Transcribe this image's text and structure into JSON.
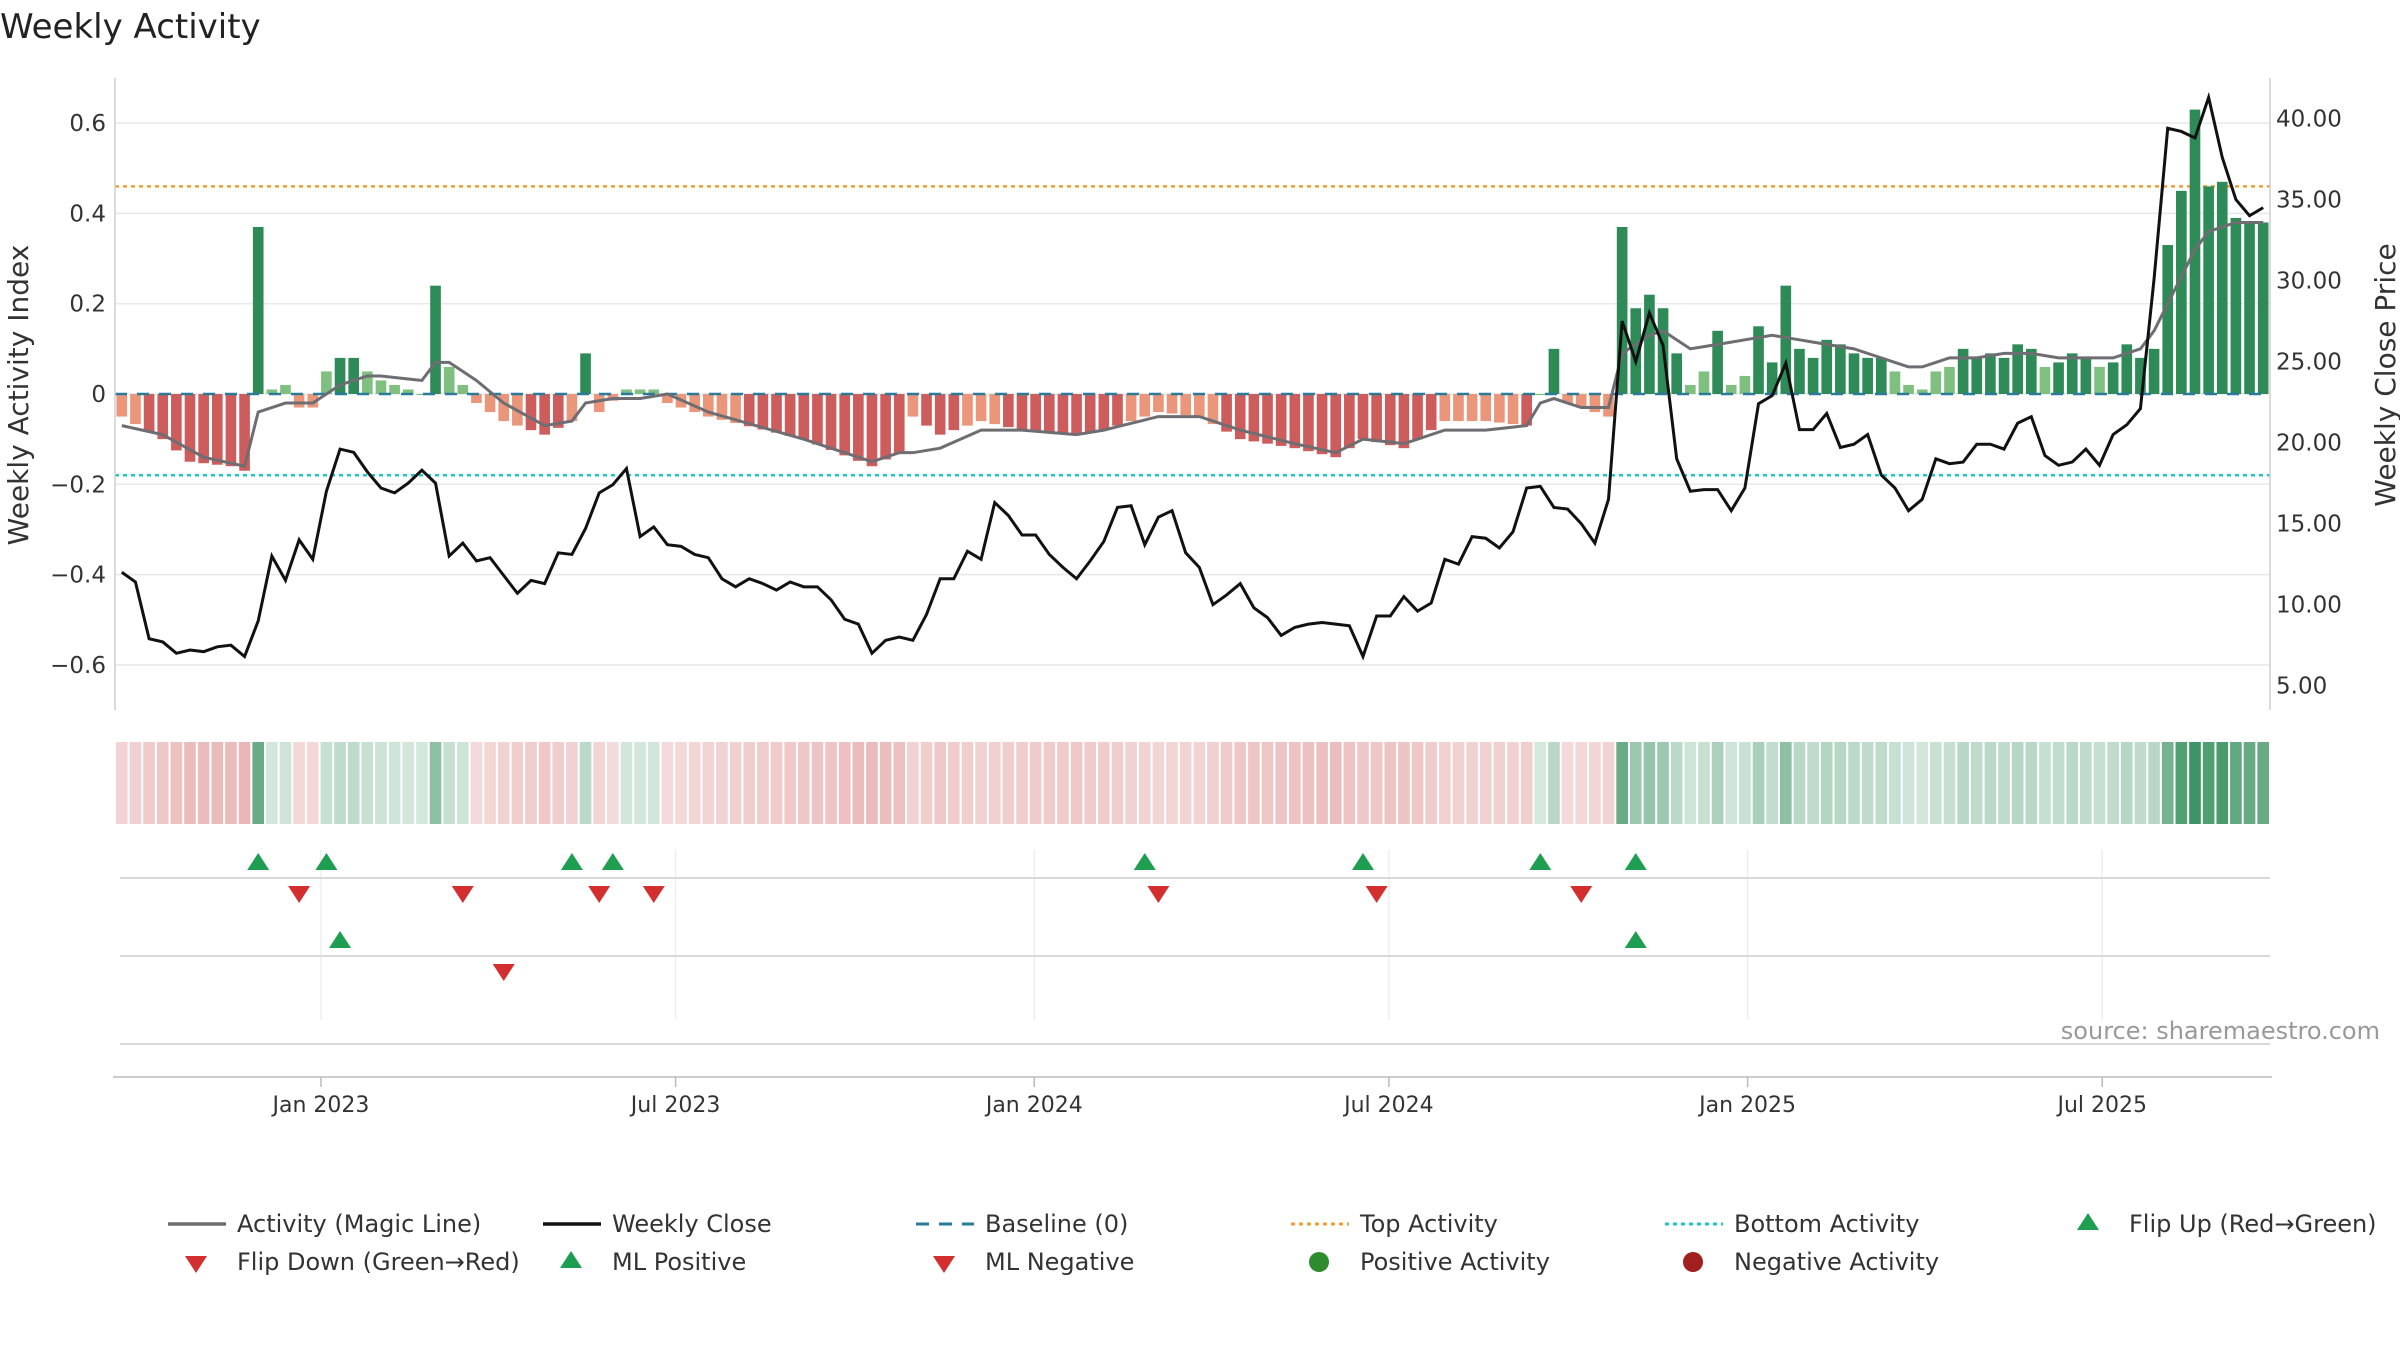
{
  "page": {
    "title": "Weekly Activity",
    "source": "source: sharemaestro.com"
  },
  "colors": {
    "magic": "#6e6e72",
    "close": "#111111",
    "baseline": "#2a7a9a",
    "top": "#f0a030",
    "bottom": "#20c8c8",
    "pos_dark": "#2e8b57",
    "pos_light": "#7fbf7f",
    "neg_dark": "#cd5c5c",
    "neg_light": "#e9967a",
    "flip_up": "#1e9e50",
    "flip_down": "#d32f2f",
    "heat_pos": "#2e8b57",
    "heat_neg": "#cd5c5c",
    "grid": "#e8e8e8"
  },
  "chart_data": {
    "type": "bar",
    "title": "Weekly Activity",
    "ylabel": "Weekly Activity Index",
    "y2label": "Weekly Close Price",
    "ylim": [
      -0.7,
      0.7
    ],
    "y2lim": [
      3.5,
      42.5
    ],
    "yticks": [
      -0.6,
      -0.4,
      -0.2,
      0,
      0.2,
      0.4,
      0.6
    ],
    "ytick_labels": [
      "−0.6",
      "−0.4",
      "−0.2",
      "0",
      "0.2",
      "0.4",
      "0.6"
    ],
    "y2ticks": [
      5,
      10,
      15,
      20,
      25,
      30,
      35,
      40
    ],
    "y2tick_labels": [
      "5.00",
      "10.00",
      "15.00",
      "20.00",
      "25.00",
      "30.00",
      "35.00",
      "40.00"
    ],
    "x_weeks": 158,
    "xticks": [
      {
        "week": 14.6,
        "label": "Jan 2023"
      },
      {
        "week": 40.6,
        "label": "Jul 2023"
      },
      {
        "week": 66.9,
        "label": "Jan 2024"
      },
      {
        "week": 92.9,
        "label": "Jul 2024"
      },
      {
        "week": 119.2,
        "label": "Jan 2025"
      },
      {
        "week": 145.2,
        "label": "Jul 2025"
      }
    ],
    "top_activity": 0.46,
    "bottom_activity": -0.18,
    "baseline": 0,
    "activity_anchors": [
      [
        0,
        -0.05
      ],
      [
        3,
        -0.1
      ],
      [
        5,
        -0.15
      ],
      [
        8,
        -0.16
      ],
      [
        9,
        -0.17
      ],
      [
        10,
        0.37
      ],
      [
        11,
        0.01
      ],
      [
        12,
        0.02
      ],
      [
        13,
        -0.03
      ],
      [
        14,
        -0.03
      ],
      [
        15,
        0.05
      ],
      [
        16,
        0.08
      ],
      [
        17,
        0.08
      ],
      [
        18,
        0.05
      ],
      [
        19,
        0.03
      ],
      [
        22,
        0.0
      ],
      [
        23,
        0.24
      ],
      [
        24,
        0.06
      ],
      [
        26,
        -0.02
      ],
      [
        28,
        -0.06
      ],
      [
        31,
        -0.09
      ],
      [
        33,
        -0.06
      ],
      [
        34,
        0.09
      ],
      [
        35,
        -0.04
      ],
      [
        37,
        0.01
      ],
      [
        39,
        0.01
      ],
      [
        40,
        -0.02
      ],
      [
        43,
        -0.05
      ],
      [
        50,
        -0.1
      ],
      [
        55,
        -0.16
      ],
      [
        57,
        -0.13
      ],
      [
        58,
        -0.05
      ],
      [
        60,
        -0.09
      ],
      [
        63,
        -0.06
      ],
      [
        66,
        -0.08
      ],
      [
        70,
        -0.09
      ],
      [
        72,
        -0.08
      ],
      [
        76,
        -0.04
      ],
      [
        79,
        -0.05
      ],
      [
        82,
        -0.1
      ],
      [
        86,
        -0.12
      ],
      [
        89,
        -0.14
      ],
      [
        91,
        -0.1
      ],
      [
        94,
        -0.12
      ],
      [
        97,
        -0.06
      ],
      [
        100,
        -0.06
      ],
      [
        103,
        -0.07
      ],
      [
        104,
        0.0
      ],
      [
        105,
        0.1
      ],
      [
        106,
        -0.02
      ],
      [
        109,
        -0.05
      ],
      [
        110,
        0.37
      ],
      [
        111,
        0.19
      ],
      [
        112,
        0.22
      ],
      [
        113,
        0.19
      ],
      [
        114,
        0.09
      ],
      [
        115,
        0.02
      ],
      [
        116,
        0.05
      ],
      [
        117,
        0.14
      ],
      [
        118,
        0.02
      ],
      [
        119,
        0.04
      ],
      [
        120,
        0.15
      ],
      [
        121,
        0.07
      ],
      [
        122,
        0.24
      ],
      [
        123,
        0.1
      ],
      [
        124,
        0.08
      ],
      [
        125,
        0.12
      ],
      [
        126,
        0.11
      ],
      [
        127,
        0.09
      ],
      [
        128,
        0.08
      ],
      [
        129,
        0.08
      ],
      [
        130,
        0.05
      ],
      [
        131,
        0.02
      ],
      [
        132,
        0.01
      ],
      [
        133,
        0.05
      ],
      [
        134,
        0.06
      ],
      [
        135,
        0.1
      ],
      [
        136,
        0.08
      ],
      [
        137,
        0.09
      ],
      [
        138,
        0.08
      ],
      [
        139,
        0.11
      ],
      [
        140,
        0.1
      ],
      [
        141,
        0.06
      ],
      [
        142,
        0.07
      ],
      [
        143,
        0.09
      ],
      [
        144,
        0.08
      ],
      [
        145,
        0.06
      ],
      [
        146,
        0.07
      ],
      [
        147,
        0.11
      ],
      [
        148,
        0.08
      ],
      [
        149,
        0.1
      ],
      [
        150,
        0.33
      ],
      [
        151,
        0.45
      ],
      [
        152,
        0.63
      ],
      [
        153,
        0.46
      ],
      [
        154,
        0.47
      ],
      [
        155,
        0.39
      ],
      [
        156,
        0.38
      ],
      [
        157,
        0.38
      ]
    ],
    "close_anchors": [
      [
        0,
        12.0
      ],
      [
        1,
        11.4
      ],
      [
        2,
        7.9
      ],
      [
        3,
        7.7
      ],
      [
        4,
        7.0
      ],
      [
        5,
        7.2
      ],
      [
        6,
        7.1
      ],
      [
        7,
        7.4
      ],
      [
        8,
        7.5
      ],
      [
        9,
        6.8
      ],
      [
        10,
        9.0
      ],
      [
        11,
        13.0
      ],
      [
        12,
        11.5
      ],
      [
        13,
        14.0
      ],
      [
        14,
        12.8
      ],
      [
        15,
        17.0
      ],
      [
        16,
        19.6
      ],
      [
        17,
        19.4
      ],
      [
        18,
        18.2
      ],
      [
        19,
        17.2
      ],
      [
        20,
        16.9
      ],
      [
        21,
        17.5
      ],
      [
        22,
        18.3
      ],
      [
        23,
        17.5
      ],
      [
        24,
        13.0
      ],
      [
        25,
        13.8
      ],
      [
        26,
        12.7
      ],
      [
        27,
        12.9
      ],
      [
        28,
        11.8
      ],
      [
        29,
        10.7
      ],
      [
        30,
        11.5
      ],
      [
        31,
        11.3
      ],
      [
        32,
        13.2
      ],
      [
        33,
        13.1
      ],
      [
        34,
        14.7
      ],
      [
        35,
        16.9
      ],
      [
        36,
        17.4
      ],
      [
        37,
        18.4
      ],
      [
        38,
        14.2
      ],
      [
        39,
        14.8
      ],
      [
        40,
        13.7
      ],
      [
        41,
        13.6
      ],
      [
        42,
        13.1
      ],
      [
        43,
        12.9
      ],
      [
        44,
        11.6
      ],
      [
        45,
        11.1
      ],
      [
        46,
        11.6
      ],
      [
        47,
        11.3
      ],
      [
        48,
        10.9
      ],
      [
        49,
        11.4
      ],
      [
        50,
        11.1
      ],
      [
        51,
        11.1
      ],
      [
        52,
        10.3
      ],
      [
        53,
        9.1
      ],
      [
        54,
        8.8
      ],
      [
        55,
        7.0
      ],
      [
        56,
        7.8
      ],
      [
        57,
        8.0
      ],
      [
        58,
        7.8
      ],
      [
        59,
        9.4
      ],
      [
        60,
        11.6
      ],
      [
        61,
        11.6
      ],
      [
        62,
        13.3
      ],
      [
        63,
        12.8
      ],
      [
        64,
        16.3
      ],
      [
        65,
        15.5
      ],
      [
        66,
        14.3
      ],
      [
        67,
        14.3
      ],
      [
        68,
        13.1
      ],
      [
        69,
        12.3
      ],
      [
        70,
        11.6
      ],
      [
        71,
        12.7
      ],
      [
        72,
        13.9
      ],
      [
        73,
        16.0
      ],
      [
        74,
        16.1
      ],
      [
        75,
        13.7
      ],
      [
        76,
        15.4
      ],
      [
        77,
        15.8
      ],
      [
        78,
        13.2
      ],
      [
        79,
        12.3
      ],
      [
        80,
        10.0
      ],
      [
        81,
        10.6
      ],
      [
        82,
        11.3
      ],
      [
        83,
        9.8
      ],
      [
        84,
        9.2
      ],
      [
        85,
        8.1
      ],
      [
        86,
        8.6
      ],
      [
        87,
        8.8
      ],
      [
        88,
        8.9
      ],
      [
        89,
        8.8
      ],
      [
        90,
        8.7
      ],
      [
        91,
        6.8
      ],
      [
        92,
        9.3
      ],
      [
        93,
        9.3
      ],
      [
        94,
        10.5
      ],
      [
        95,
        9.6
      ],
      [
        96,
        10.1
      ],
      [
        97,
        12.8
      ],
      [
        98,
        12.5
      ],
      [
        99,
        14.2
      ],
      [
        100,
        14.1
      ],
      [
        101,
        13.5
      ],
      [
        102,
        14.5
      ],
      [
        103,
        17.2
      ],
      [
        104,
        17.3
      ],
      [
        105,
        16.0
      ],
      [
        106,
        15.9
      ],
      [
        107,
        15.0
      ],
      [
        108,
        13.8
      ],
      [
        109,
        16.5
      ],
      [
        110,
        27.5
      ],
      [
        111,
        25.0
      ],
      [
        112,
        28.0
      ],
      [
        113,
        26.0
      ],
      [
        114,
        19.0
      ],
      [
        115,
        17.0
      ],
      [
        116,
        17.1
      ],
      [
        117,
        17.1
      ],
      [
        118,
        15.8
      ],
      [
        119,
        17.2
      ],
      [
        120,
        22.4
      ],
      [
        121,
        22.9
      ],
      [
        122,
        24.9
      ],
      [
        123,
        20.8
      ],
      [
        124,
        20.8
      ],
      [
        125,
        21.8
      ],
      [
        126,
        19.7
      ],
      [
        127,
        19.9
      ],
      [
        128,
        20.5
      ],
      [
        129,
        18.0
      ],
      [
        130,
        17.2
      ],
      [
        131,
        15.8
      ],
      [
        132,
        16.5
      ],
      [
        133,
        19.0
      ],
      [
        134,
        18.7
      ],
      [
        135,
        18.8
      ],
      [
        136,
        19.9
      ],
      [
        137,
        19.9
      ],
      [
        138,
        19.6
      ],
      [
        139,
        21.2
      ],
      [
        140,
        21.6
      ],
      [
        141,
        19.2
      ],
      [
        142,
        18.6
      ],
      [
        143,
        18.8
      ],
      [
        144,
        19.6
      ],
      [
        145,
        18.6
      ],
      [
        146,
        20.5
      ],
      [
        147,
        21.1
      ],
      [
        148,
        22.1
      ],
      [
        149,
        30.1
      ],
      [
        150,
        39.4
      ],
      [
        151,
        39.2
      ],
      [
        152,
        38.8
      ],
      [
        153,
        41.3
      ],
      [
        154,
        37.6
      ],
      [
        155,
        35.0
      ],
      [
        156,
        34.0
      ],
      [
        157,
        34.5
      ]
    ],
    "magic_anchors": [
      [
        0,
        -0.07
      ],
      [
        3,
        -0.09
      ],
      [
        6,
        -0.14
      ],
      [
        9,
        -0.16
      ],
      [
        10,
        -0.04
      ],
      [
        12,
        -0.02
      ],
      [
        14,
        -0.02
      ],
      [
        16,
        0.02
      ],
      [
        18,
        0.04
      ],
      [
        19,
        0.04
      ],
      [
        22,
        0.03
      ],
      [
        23,
        0.07
      ],
      [
        24,
        0.07
      ],
      [
        26,
        0.03
      ],
      [
        28,
        -0.02
      ],
      [
        31,
        -0.07
      ],
      [
        33,
        -0.06
      ],
      [
        34,
        -0.02
      ],
      [
        36,
        -0.01
      ],
      [
        38,
        -0.01
      ],
      [
        40,
        0.0
      ],
      [
        43,
        -0.04
      ],
      [
        50,
        -0.1
      ],
      [
        55,
        -0.15
      ],
      [
        57,
        -0.13
      ],
      [
        58,
        -0.13
      ],
      [
        60,
        -0.12
      ],
      [
        63,
        -0.08
      ],
      [
        66,
        -0.08
      ],
      [
        70,
        -0.09
      ],
      [
        72,
        -0.08
      ],
      [
        76,
        -0.05
      ],
      [
        79,
        -0.05
      ],
      [
        82,
        -0.08
      ],
      [
        86,
        -0.11
      ],
      [
        89,
        -0.13
      ],
      [
        91,
        -0.1
      ],
      [
        94,
        -0.11
      ],
      [
        97,
        -0.08
      ],
      [
        100,
        -0.08
      ],
      [
        103,
        -0.07
      ],
      [
        104,
        -0.02
      ],
      [
        105,
        -0.01
      ],
      [
        107,
        -0.03
      ],
      [
        109,
        -0.03
      ],
      [
        110,
        0.09
      ],
      [
        112,
        0.13
      ],
      [
        113,
        0.14
      ],
      [
        115,
        0.1
      ],
      [
        117,
        0.11
      ],
      [
        119,
        0.12
      ],
      [
        121,
        0.13
      ],
      [
        123,
        0.12
      ],
      [
        125,
        0.11
      ],
      [
        127,
        0.1
      ],
      [
        129,
        0.08
      ],
      [
        131,
        0.06
      ],
      [
        132,
        0.06
      ],
      [
        134,
        0.08
      ],
      [
        136,
        0.08
      ],
      [
        138,
        0.09
      ],
      [
        140,
        0.09
      ],
      [
        142,
        0.08
      ],
      [
        144,
        0.08
      ],
      [
        146,
        0.08
      ],
      [
        148,
        0.1
      ],
      [
        149,
        0.14
      ],
      [
        150,
        0.2
      ],
      [
        151,
        0.26
      ],
      [
        152,
        0.32
      ],
      [
        153,
        0.36
      ],
      [
        154,
        0.37
      ],
      [
        155,
        0.38
      ],
      [
        156,
        0.38
      ],
      [
        157,
        0.38
      ]
    ],
    "flip_up_weeks": [
      10,
      15,
      33,
      36,
      75,
      91,
      104,
      111
    ],
    "flip_down_weeks": [
      13,
      25,
      35,
      39,
      76,
      92,
      107
    ],
    "ml_positive_weeks": [
      16,
      111
    ],
    "ml_negative_weeks": [
      28
    ],
    "legend": [
      {
        "label": "Activity (Magic Line)",
        "kind": "line",
        "color": "#6e6e72"
      },
      {
        "label": "Weekly Close",
        "kind": "line",
        "color": "#111111"
      },
      {
        "label": "Baseline (0)",
        "kind": "dash",
        "color": "#2a7a9a"
      },
      {
        "label": "Top Activity",
        "kind": "dot",
        "color": "#f0a030"
      },
      {
        "label": "Bottom Activity",
        "kind": "dot",
        "color": "#20c8c8"
      },
      {
        "label": "Flip Up (Red→Green)",
        "kind": "tri-up",
        "color": "#1e9e50"
      },
      {
        "label": "Flip Down (Green→Red)",
        "kind": "tri-down",
        "color": "#d32f2f"
      },
      {
        "label": "ML Positive",
        "kind": "tri-up",
        "color": "#1e9e50"
      },
      {
        "label": "ML Negative",
        "kind": "tri-down",
        "color": "#d32f2f"
      },
      {
        "label": "Positive Activity",
        "kind": "circle",
        "color": "#2e8b2e"
      },
      {
        "label": "Negative Activity",
        "kind": "circle",
        "color": "#a02020"
      }
    ]
  }
}
